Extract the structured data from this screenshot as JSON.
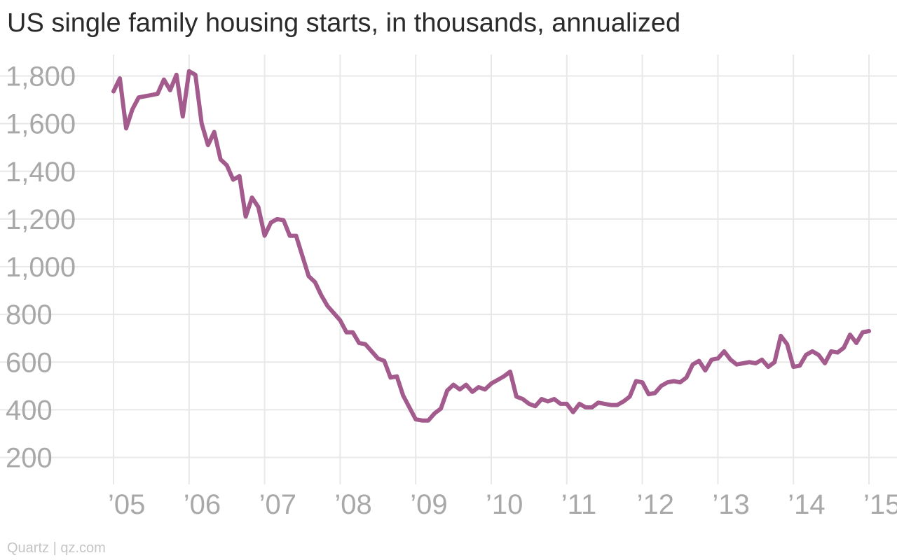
{
  "title": "US single family housing starts, in thousands, annualized",
  "credit": "Quartz | qz.com",
  "colors": {
    "line": "#a35a8c",
    "grid": "#e8e8e8",
    "tick": "#a8a8a8"
  },
  "chart_data": {
    "type": "line",
    "title": "US single family housing starts, in thousands, annualized",
    "xlabel": "",
    "ylabel": "",
    "ylim": [
      150,
      1850
    ],
    "xlim": [
      "2005-01",
      "2015-01"
    ],
    "yticks": [
      200,
      400,
      600,
      800,
      1000,
      1200,
      1400,
      1600,
      1800
    ],
    "ytick_labels": [
      "200",
      "400",
      "600",
      "800",
      "1,000",
      "1,200",
      "1,400",
      "1,600",
      "1,800"
    ],
    "xticks": [
      "2005-01",
      "2006-01",
      "2007-01",
      "2008-01",
      "2009-01",
      "2010-01",
      "2011-01",
      "2012-01",
      "2013-01",
      "2014-01",
      "2015-01"
    ],
    "xtick_labels": [
      "’05",
      "’06",
      "’07",
      "’08",
      "’09",
      "’10",
      "’11",
      "’12",
      "’13",
      "’14",
      "’15"
    ],
    "grid": true,
    "series": [
      {
        "x": [
          "2005-01",
          "2005-02",
          "2005-03",
          "2005-04",
          "2005-05",
          "2005-06",
          "2005-07",
          "2005-08",
          "2005-09",
          "2005-10",
          "2005-11",
          "2005-12",
          "2006-01",
          "2006-02",
          "2006-03",
          "2006-04",
          "2006-05",
          "2006-06",
          "2006-07",
          "2006-08",
          "2006-09",
          "2006-10",
          "2006-11",
          "2006-12",
          "2007-01",
          "2007-02",
          "2007-03",
          "2007-04",
          "2007-05",
          "2007-06",
          "2007-07",
          "2007-08",
          "2007-09",
          "2007-10",
          "2007-11",
          "2007-12",
          "2008-01",
          "2008-02",
          "2008-03",
          "2008-04",
          "2008-05",
          "2008-06",
          "2008-07",
          "2008-08",
          "2008-09",
          "2008-10",
          "2008-11",
          "2008-12",
          "2009-01",
          "2009-02",
          "2009-03",
          "2009-04",
          "2009-05",
          "2009-06",
          "2009-07",
          "2009-08",
          "2009-09",
          "2009-10",
          "2009-11",
          "2009-12",
          "2010-01",
          "2010-02",
          "2010-03",
          "2010-04",
          "2010-05",
          "2010-06",
          "2010-07",
          "2010-08",
          "2010-09",
          "2010-10",
          "2010-11",
          "2010-12",
          "2011-01",
          "2011-02",
          "2011-03",
          "2011-04",
          "2011-05",
          "2011-06",
          "2011-07",
          "2011-08",
          "2011-09",
          "2011-10",
          "2011-11",
          "2011-12",
          "2012-01",
          "2012-02",
          "2012-03",
          "2012-04",
          "2012-05",
          "2012-06",
          "2012-07",
          "2012-08",
          "2012-09",
          "2012-10",
          "2012-11",
          "2012-12",
          "2013-01",
          "2013-02",
          "2013-03",
          "2013-04",
          "2013-05",
          "2013-06",
          "2013-07",
          "2013-08",
          "2013-09",
          "2013-10",
          "2013-11",
          "2013-12",
          "2014-01",
          "2014-02",
          "2014-03",
          "2014-04",
          "2014-05",
          "2014-06",
          "2014-07",
          "2014-08",
          "2014-09",
          "2014-10",
          "2014-11",
          "2014-12",
          "2015-01"
        ],
        "values": [
          1735,
          1790,
          1580,
          1660,
          1710,
          1715,
          1720,
          1725,
          1785,
          1740,
          1805,
          1630,
          1820,
          1805,
          1600,
          1510,
          1565,
          1450,
          1425,
          1365,
          1380,
          1210,
          1290,
          1250,
          1130,
          1185,
          1200,
          1195,
          1130,
          1130,
          1045,
          960,
          935,
          880,
          835,
          805,
          775,
          725,
          725,
          680,
          675,
          645,
          615,
          605,
          535,
          540,
          460,
          410,
          360,
          355,
          355,
          385,
          405,
          480,
          505,
          485,
          505,
          475,
          495,
          485,
          510,
          525,
          540,
          560,
          455,
          445,
          425,
          415,
          445,
          435,
          445,
          425,
          425,
          390,
          425,
          410,
          410,
          430,
          425,
          420,
          420,
          435,
          455,
          520,
          515,
          465,
          470,
          500,
          515,
          520,
          515,
          535,
          590,
          605,
          565,
          610,
          615,
          645,
          610,
          590,
          595,
          600,
          595,
          610,
          580,
          600,
          710,
          675,
          580,
          585,
          630,
          645,
          630,
          595,
          645,
          640,
          660,
          715,
          680,
          725,
          730
        ]
      }
    ]
  }
}
